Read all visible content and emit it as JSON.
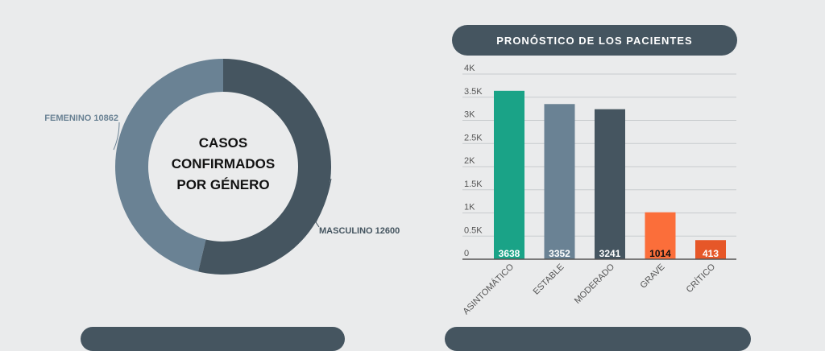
{
  "colors": {
    "background": "#eaebec",
    "femenino": "#6a8294",
    "masculino": "#455560",
    "asintomatico": "#1aa387",
    "estable": "#6a8294",
    "moderado": "#455560",
    "grave": "#fb6e3a",
    "critico": "#e65728",
    "grid": "#c8cbce"
  },
  "chart_data": [
    {
      "type": "pie",
      "title": "CASOS CONFIRMADOS POR GÉNERO",
      "title_lines": [
        "CASOS",
        "CONFIRMADOS",
        "POR GÉNERO"
      ],
      "labels": [
        "FEMENINO",
        "MASCULINO"
      ],
      "values": [
        10862,
        12600
      ],
      "slice_labels": [
        "FEMENINO 10862",
        "MASCULINO 12600"
      ],
      "donut": true
    },
    {
      "type": "bar",
      "title": "PRONÓSTICO DE LOS PACIENTES",
      "categories": [
        "ASINTOMÁTICO",
        "ESTABLE",
        "MODERADO",
        "GRAVE",
        "CRÍTICO"
      ],
      "values": [
        3638,
        3352,
        3241,
        1014,
        413
      ],
      "data_labels": [
        "3638",
        "3352",
        "3241",
        "1014",
        "413"
      ],
      "ylim": [
        0,
        4000
      ],
      "yticks": [
        0,
        500,
        1000,
        1500,
        2000,
        2500,
        3000,
        3500,
        4000
      ],
      "ytick_labels": [
        "0",
        "0.5K",
        "1K",
        "1.5K",
        "2K",
        "2.5K",
        "3K",
        "3.5K",
        "4K"
      ],
      "grid": true,
      "legend": false
    }
  ]
}
